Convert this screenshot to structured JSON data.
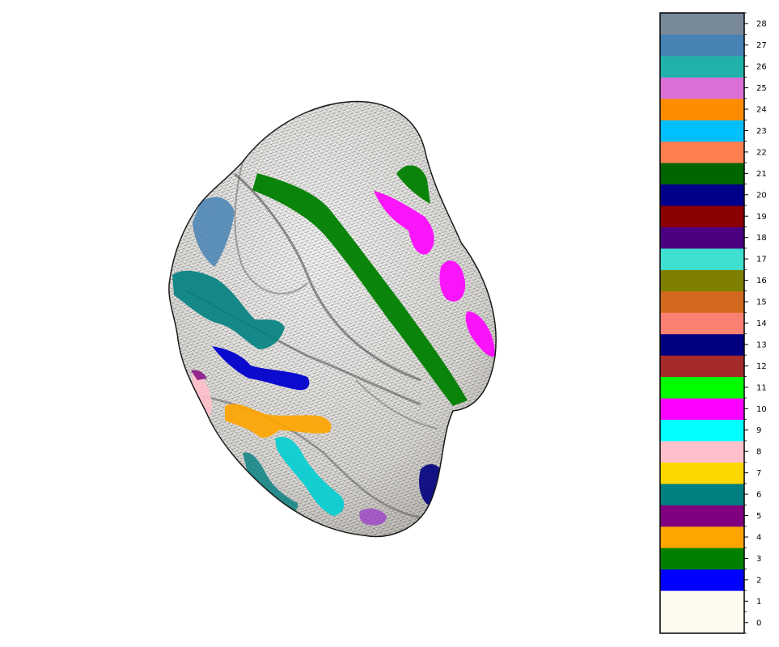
{
  "figure": {
    "background": "#ffffff",
    "surface": {
      "mesh_color": "#000000",
      "base_color": "#e8e6e2",
      "labeled_regions": [
        {
          "label": 3,
          "color": "#008000"
        },
        {
          "label": 10,
          "color": "#ff00ff"
        },
        {
          "label": 6,
          "color": "#008080"
        },
        {
          "label": 27,
          "color": "#4682b4"
        },
        {
          "label": 2,
          "color": "#0000ff"
        },
        {
          "label": 4,
          "color": "#ffa500"
        },
        {
          "label": 9,
          "color": "#00ffff"
        },
        {
          "label": 8,
          "color": "#ffc0cb"
        },
        {
          "label": 13,
          "color": "#000080"
        },
        {
          "label": 5,
          "color": "#800080"
        }
      ]
    },
    "colorbar": {
      "ticks": [
        "0",
        "1",
        "2",
        "3",
        "4",
        "5",
        "6",
        "7",
        "8",
        "9",
        "10",
        "11",
        "12",
        "13",
        "14",
        "15",
        "16",
        "17",
        "18",
        "19",
        "20",
        "21",
        "22",
        "23",
        "24",
        "25",
        "26",
        "27",
        "28"
      ],
      "segments": [
        {
          "label": "0-1",
          "color": "#fffaf0"
        },
        {
          "label": "2",
          "color": "#0000ff"
        },
        {
          "label": "3",
          "color": "#008000"
        },
        {
          "label": "4",
          "color": "#ffa500"
        },
        {
          "label": "5",
          "color": "#800080"
        },
        {
          "label": "6",
          "color": "#008080"
        },
        {
          "label": "7",
          "color": "#ffd700"
        },
        {
          "label": "8",
          "color": "#ffc0cb"
        },
        {
          "label": "9",
          "color": "#00ffff"
        },
        {
          "label": "10",
          "color": "#ff00ff"
        },
        {
          "label": "11",
          "color": "#00ff00"
        },
        {
          "label": "12",
          "color": "#a52a2a"
        },
        {
          "label": "13",
          "color": "#000080"
        },
        {
          "label": "14",
          "color": "#fa8072"
        },
        {
          "label": "15",
          "color": "#d2691e"
        },
        {
          "label": "16",
          "color": "#808000"
        },
        {
          "label": "17",
          "color": "#40e0d0"
        },
        {
          "label": "18",
          "color": "#4b0082"
        },
        {
          "label": "19",
          "color": "#8b0000"
        },
        {
          "label": "20",
          "color": "#00008b"
        },
        {
          "label": "21",
          "color": "#006400"
        },
        {
          "label": "22",
          "color": "#ff7f50"
        },
        {
          "label": "23",
          "color": "#00bfff"
        },
        {
          "label": "24",
          "color": "#ff8c00"
        },
        {
          "label": "25",
          "color": "#da70d6"
        },
        {
          "label": "26",
          "color": "#20b2aa"
        },
        {
          "label": "27",
          "color": "#4682b4"
        },
        {
          "label": "28",
          "color": "#778899"
        }
      ]
    }
  }
}
